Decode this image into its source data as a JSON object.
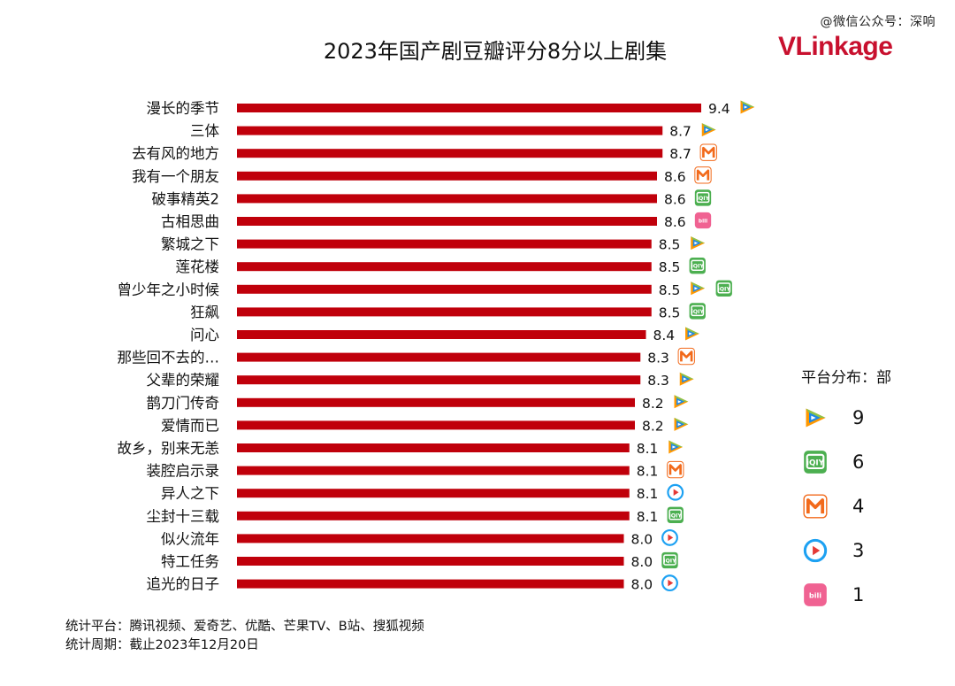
{
  "watermark": "@微信公众号：深响",
  "logo": {
    "part1": "VLink",
    "part2": "age"
  },
  "chart_data": {
    "type": "bar",
    "orientation": "horizontal",
    "title": "2023年国产剧豆瓣评分8分以上剧集",
    "categories": [
      "漫长的季节",
      "三体",
      "去有风的地方",
      "我有一个朋友",
      "破事精英2",
      "古相思曲",
      "繁城之下",
      "莲花楼",
      "曾少年之小时候",
      "狂飙",
      "问心",
      "那些回不去的…",
      "父辈的荣耀",
      "鹊刀门传奇",
      "爱情而已",
      "故乡，别来无恙",
      "装腔启示录",
      "异人之下",
      "尘封十三载",
      "似火流年",
      "特工任务",
      "追光的日子"
    ],
    "values": [
      9.4,
      8.7,
      8.7,
      8.6,
      8.6,
      8.6,
      8.5,
      8.5,
      8.5,
      8.5,
      8.4,
      8.3,
      8.3,
      8.2,
      8.2,
      8.1,
      8.1,
      8.1,
      8.1,
      8.0,
      8.0,
      8.0
    ],
    "platforms": [
      [
        "tencent"
      ],
      [
        "tencent"
      ],
      [
        "mango"
      ],
      [
        "mango"
      ],
      [
        "iqiyi"
      ],
      [
        "bilibili"
      ],
      [
        "tencent"
      ],
      [
        "iqiyi"
      ],
      [
        "tencent",
        "iqiyi"
      ],
      [
        "iqiyi"
      ],
      [
        "tencent"
      ],
      [
        "mango"
      ],
      [
        "tencent"
      ],
      [
        "tencent"
      ],
      [
        "tencent"
      ],
      [
        "tencent"
      ],
      [
        "mango"
      ],
      [
        "youku"
      ],
      [
        "iqiyi"
      ],
      [
        "youku"
      ],
      [
        "iqiyi"
      ],
      [
        "youku"
      ]
    ],
    "bar_color": "#c0000b",
    "grid": false
  },
  "legend": {
    "title": "平台分布：部",
    "items": [
      {
        "platform": "tencent",
        "icon": "tencent-video-icon",
        "count": "9"
      },
      {
        "platform": "iqiyi",
        "icon": "iqiyi-icon",
        "count": "6"
      },
      {
        "platform": "mango",
        "icon": "mango-tv-icon",
        "count": "4"
      },
      {
        "platform": "youku",
        "icon": "youku-icon",
        "count": "3"
      },
      {
        "platform": "bilibili",
        "icon": "bilibili-icon",
        "count": "1"
      }
    ]
  },
  "footer": {
    "line1": "统计平台：腾讯视频、爱奇艺、优酷、芒果TV、B站、搜狐视频",
    "line2": "统计周期：截止2023年12月20日"
  },
  "colors": {
    "tencent_blue": "#1e88e5",
    "tencent_orange": "#ff9800",
    "tencent_green": "#8bc34a",
    "iqiyi": "#4caf50",
    "mango": "#f26a1b",
    "youku": "#1da1f2",
    "youku_red": "#e53935",
    "bilibili": "#f06292"
  }
}
